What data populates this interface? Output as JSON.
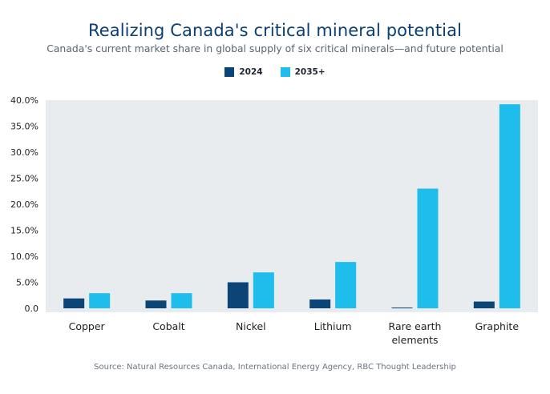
{
  "chart_data": {
    "type": "bar",
    "title": "Realizing Canada's critical mineral potential",
    "subtitle": "Canada's current market share in global supply of six critical minerals—and future potential",
    "categories": [
      "Copper",
      "Cobalt",
      "Nickel",
      "Lithium",
      "Rare earth elements",
      "Graphite"
    ],
    "category_lines": [
      [
        "Copper"
      ],
      [
        "Cobalt"
      ],
      [
        "Nickel"
      ],
      [
        "Lithium"
      ],
      [
        "Rare earth",
        "elements"
      ],
      [
        "Graphite"
      ]
    ],
    "series": [
      {
        "name": "2024",
        "color": "#0b4577",
        "values": [
          1.9,
          1.5,
          5.0,
          1.7,
          0.1,
          1.3
        ]
      },
      {
        "name": "2035+",
        "color": "#1fbdec",
        "values": [
          2.9,
          2.9,
          6.9,
          8.9,
          23.0,
          39.2
        ]
      }
    ],
    "yticks": [
      "0.0",
      "5.0%",
      "10.0%",
      "15.0%",
      "20.0%",
      "25.0%",
      "30.0%",
      "35.0%",
      "40.0%"
    ],
    "ylim": [
      0,
      40
    ],
    "grid": false,
    "plot_background": "#e8ecef",
    "legend_position": "top-center",
    "source": "Source: Natural Resources Canada, International Energy Agency, RBC Thought Leadership"
  }
}
